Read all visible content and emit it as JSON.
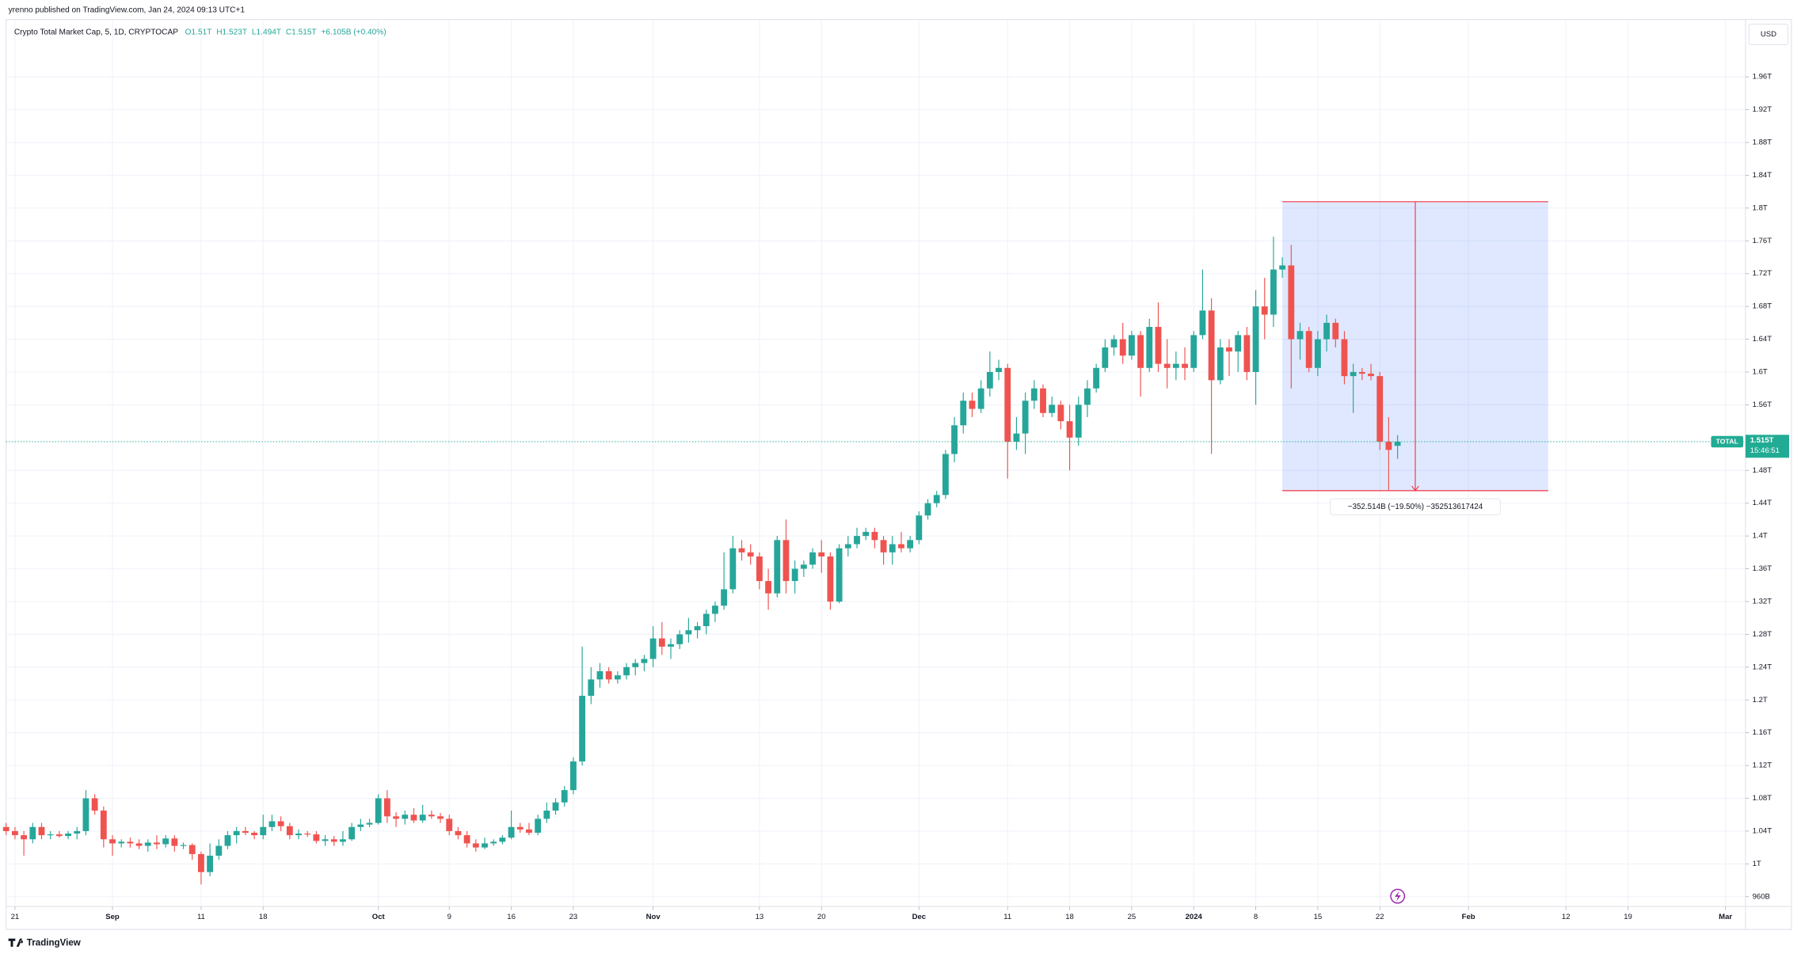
{
  "header": {
    "published": "yrenno published on TradingView.com, Jan 24, 2024 09:13 UTC+1"
  },
  "footer": {
    "brand": "TradingView"
  },
  "chart_data": {
    "type": "candlestick",
    "title": "Crypto Total Market Cap, 5, 1D, CRYPTOCAP",
    "legend": {
      "o": "O1.51T",
      "h": "H1.523T",
      "l": "L1.494T",
      "c": "C1.515T",
      "change": "+6.105B (+0.40%)"
    },
    "currency": "USD",
    "up_color": "#26a69a",
    "down_color": "#ef5350",
    "grid": true,
    "x": [
      "2023-08-20",
      "2023-08-21",
      "2023-08-22",
      "2023-08-23",
      "2023-08-24",
      "2023-08-25",
      "2023-08-26",
      "2023-08-27",
      "2023-08-28",
      "2023-08-29",
      "2023-08-30",
      "2023-08-31",
      "2023-09-01",
      "2023-09-02",
      "2023-09-03",
      "2023-09-04",
      "2023-09-05",
      "2023-09-06",
      "2023-09-07",
      "2023-09-08",
      "2023-09-09",
      "2023-09-10",
      "2023-09-11",
      "2023-09-12",
      "2023-09-13",
      "2023-09-14",
      "2023-09-15",
      "2023-09-16",
      "2023-09-17",
      "2023-09-18",
      "2023-09-19",
      "2023-09-20",
      "2023-09-21",
      "2023-09-22",
      "2023-09-23",
      "2023-09-24",
      "2023-09-25",
      "2023-09-26",
      "2023-09-27",
      "2023-09-28",
      "2023-09-29",
      "2023-09-30",
      "2023-10-01",
      "2023-10-02",
      "2023-10-03",
      "2023-10-04",
      "2023-10-05",
      "2023-10-06",
      "2023-10-07",
      "2023-10-08",
      "2023-10-09",
      "2023-10-10",
      "2023-10-11",
      "2023-10-12",
      "2023-10-13",
      "2023-10-14",
      "2023-10-15",
      "2023-10-16",
      "2023-10-17",
      "2023-10-18",
      "2023-10-19",
      "2023-10-20",
      "2023-10-21",
      "2023-10-22",
      "2023-10-23",
      "2023-10-24",
      "2023-10-25",
      "2023-10-26",
      "2023-10-27",
      "2023-10-28",
      "2023-10-29",
      "2023-10-30",
      "2023-10-31",
      "2023-11-01",
      "2023-11-02",
      "2023-11-03",
      "2023-11-04",
      "2023-11-05",
      "2023-11-06",
      "2023-11-07",
      "2023-11-08",
      "2023-11-09",
      "2023-11-10",
      "2023-11-11",
      "2023-11-12",
      "2023-11-13",
      "2023-11-14",
      "2023-11-15",
      "2023-11-16",
      "2023-11-17",
      "2023-11-18",
      "2023-11-19",
      "2023-11-20",
      "2023-11-21",
      "2023-11-22",
      "2023-11-23",
      "2023-11-24",
      "2023-11-25",
      "2023-11-26",
      "2023-11-27",
      "2023-11-28",
      "2023-11-29",
      "2023-11-30",
      "2023-12-01",
      "2023-12-02",
      "2023-12-03",
      "2023-12-04",
      "2023-12-05",
      "2023-12-06",
      "2023-12-07",
      "2023-12-08",
      "2023-12-09",
      "2023-12-10",
      "2023-12-11",
      "2023-12-12",
      "2023-12-13",
      "2023-12-14",
      "2023-12-15",
      "2023-12-16",
      "2023-12-17",
      "2023-12-18",
      "2023-12-19",
      "2023-12-20",
      "2023-12-21",
      "2023-12-22",
      "2023-12-23",
      "2023-12-24",
      "2023-12-25",
      "2023-12-26",
      "2023-12-27",
      "2023-12-28",
      "2023-12-29",
      "2023-12-30",
      "2023-12-31",
      "2024-01-01",
      "2024-01-02",
      "2024-01-03",
      "2024-01-04",
      "2024-01-05",
      "2024-01-06",
      "2024-01-07",
      "2024-01-08",
      "2024-01-09",
      "2024-01-10",
      "2024-01-11",
      "2024-01-12",
      "2024-01-13",
      "2024-01-14",
      "2024-01-15",
      "2024-01-16",
      "2024-01-17",
      "2024-01-18",
      "2024-01-19",
      "2024-01-20",
      "2024-01-21",
      "2024-01-22",
      "2024-01-23",
      "2024-01-24"
    ],
    "open": [
      1.045,
      1.04,
      1.035,
      1.03,
      1.045,
      1.035,
      1.036,
      1.034,
      1.037,
      1.04,
      1.08,
      1.065,
      1.03,
      1.025,
      1.027,
      1.025,
      1.022,
      1.026,
      1.024,
      1.031,
      1.022,
      1.023,
      1.012,
      0.99,
      1.01,
      1.022,
      1.035,
      1.04,
      1.038,
      1.035,
      1.045,
      1.052,
      1.046,
      1.035,
      1.037,
      1.036,
      1.028,
      1.03,
      1.027,
      1.03,
      1.045,
      1.048,
      1.05,
      1.08,
      1.058,
      1.055,
      1.06,
      1.053,
      1.06,
      1.058,
      1.055,
      1.04,
      1.035,
      1.025,
      1.02,
      1.025,
      1.027,
      1.032,
      1.045,
      1.042,
      1.038,
      1.055,
      1.065,
      1.075,
      1.09,
      1.125,
      1.205,
      1.225,
      1.235,
      1.225,
      1.23,
      1.24,
      1.245,
      1.25,
      1.275,
      1.265,
      1.268,
      1.28,
      1.285,
      1.29,
      1.305,
      1.315,
      1.335,
      1.385,
      1.38,
      1.375,
      1.345,
      1.33,
      1.395,
      1.345,
      1.36,
      1.365,
      1.38,
      1.375,
      1.32,
      1.385,
      1.39,
      1.4,
      1.405,
      1.395,
      1.38,
      1.39,
      1.385,
      1.395,
      1.425,
      1.44,
      1.45,
      1.5,
      1.535,
      1.565,
      1.555,
      1.58,
      1.6,
      1.605,
      1.515,
      1.525,
      1.565,
      1.58,
      1.55,
      1.56,
      1.54,
      1.52,
      1.56,
      1.58,
      1.605,
      1.63,
      1.64,
      1.62,
      1.645,
      1.605,
      1.655,
      1.61,
      1.605,
      1.61,
      1.605,
      1.645,
      1.675,
      1.59,
      1.63,
      1.625,
      1.645,
      1.6,
      1.68,
      1.67,
      1.725,
      1.73,
      1.64,
      1.65,
      1.605,
      1.64,
      1.66,
      1.64,
      1.595,
      1.6,
      1.598,
      1.595,
      1.515,
      1.51
    ],
    "high": [
      1.05,
      1.045,
      1.04,
      1.05,
      1.05,
      1.04,
      1.04,
      1.04,
      1.045,
      1.09,
      1.085,
      1.07,
      1.035,
      1.03,
      1.032,
      1.03,
      1.03,
      1.035,
      1.035,
      1.035,
      1.026,
      1.025,
      1.015,
      1.025,
      1.03,
      1.04,
      1.045,
      1.045,
      1.04,
      1.06,
      1.06,
      1.058,
      1.05,
      1.042,
      1.04,
      1.04,
      1.035,
      1.034,
      1.04,
      1.05,
      1.055,
      1.055,
      1.085,
      1.09,
      1.063,
      1.065,
      1.068,
      1.072,
      1.065,
      1.062,
      1.06,
      1.045,
      1.04,
      1.03,
      1.032,
      1.03,
      1.035,
      1.065,
      1.05,
      1.05,
      1.06,
      1.075,
      1.08,
      1.095,
      1.13,
      1.265,
      1.24,
      1.245,
      1.24,
      1.235,
      1.245,
      1.25,
      1.255,
      1.29,
      1.295,
      1.275,
      1.285,
      1.3,
      1.295,
      1.31,
      1.32,
      1.38,
      1.4,
      1.395,
      1.39,
      1.38,
      1.36,
      1.4,
      1.42,
      1.37,
      1.37,
      1.385,
      1.395,
      1.38,
      1.39,
      1.4,
      1.41,
      1.41,
      1.41,
      1.4,
      1.4,
      1.405,
      1.4,
      1.43,
      1.445,
      1.455,
      1.505,
      1.545,
      1.575,
      1.575,
      1.59,
      1.625,
      1.615,
      1.61,
      1.545,
      1.575,
      1.59,
      1.585,
      1.57,
      1.565,
      1.56,
      1.57,
      1.59,
      1.61,
      1.64,
      1.645,
      1.66,
      1.65,
      1.65,
      1.665,
      1.685,
      1.64,
      1.625,
      1.63,
      1.65,
      1.725,
      1.69,
      1.64,
      1.64,
      1.65,
      1.655,
      1.7,
      1.715,
      1.765,
      1.74,
      1.755,
      1.66,
      1.655,
      1.65,
      1.67,
      1.665,
      1.65,
      1.61,
      1.605,
      1.61,
      1.6,
      1.545,
      1.523
    ],
    "low": [
      1.035,
      1.03,
      1.01,
      1.025,
      1.03,
      1.03,
      1.032,
      1.03,
      1.03,
      1.035,
      1.06,
      1.02,
      1.01,
      1.02,
      1.02,
      1.018,
      1.015,
      1.018,
      1.02,
      1.015,
      1.018,
      1.005,
      0.975,
      0.985,
      1.005,
      1.018,
      1.025,
      1.035,
      1.03,
      1.03,
      1.04,
      1.04,
      1.03,
      1.03,
      1.033,
      1.025,
      1.022,
      1.022,
      1.022,
      1.028,
      1.04,
      1.045,
      1.048,
      1.05,
      1.045,
      1.048,
      1.05,
      1.05,
      1.055,
      1.05,
      1.035,
      1.03,
      1.02,
      1.015,
      1.018,
      1.022,
      1.024,
      1.03,
      1.038,
      1.035,
      1.035,
      1.05,
      1.06,
      1.07,
      1.085,
      1.12,
      1.195,
      1.215,
      1.22,
      1.22,
      1.225,
      1.23,
      1.235,
      1.24,
      1.255,
      1.25,
      1.262,
      1.27,
      1.275,
      1.28,
      1.295,
      1.31,
      1.33,
      1.37,
      1.365,
      1.335,
      1.31,
      1.325,
      1.33,
      1.33,
      1.35,
      1.36,
      1.355,
      1.31,
      1.318,
      1.375,
      1.385,
      1.395,
      1.385,
      1.365,
      1.365,
      1.38,
      1.38,
      1.39,
      1.42,
      1.435,
      1.445,
      1.49,
      1.525,
      1.545,
      1.55,
      1.57,
      1.59,
      1.47,
      1.505,
      1.5,
      1.555,
      1.545,
      1.545,
      1.53,
      1.48,
      1.51,
      1.545,
      1.575,
      1.6,
      1.62,
      1.61,
      1.615,
      1.57,
      1.6,
      1.6,
      1.58,
      1.59,
      1.59,
      1.6,
      1.64,
      1.5,
      1.585,
      1.595,
      1.6,
      1.59,
      1.56,
      1.64,
      1.655,
      1.715,
      1.58,
      1.615,
      1.6,
      1.595,
      1.625,
      1.63,
      1.585,
      1.55,
      1.59,
      1.59,
      1.505,
      1.455,
      1.494
    ],
    "close": [
      1.04,
      1.035,
      1.03,
      1.045,
      1.035,
      1.036,
      1.034,
      1.037,
      1.04,
      1.08,
      1.065,
      1.03,
      1.025,
      1.027,
      1.025,
      1.022,
      1.026,
      1.024,
      1.031,
      1.022,
      1.023,
      1.012,
      0.99,
      1.01,
      1.022,
      1.035,
      1.04,
      1.038,
      1.035,
      1.045,
      1.052,
      1.046,
      1.035,
      1.037,
      1.036,
      1.028,
      1.03,
      1.027,
      1.03,
      1.045,
      1.048,
      1.05,
      1.08,
      1.058,
      1.055,
      1.06,
      1.053,
      1.06,
      1.058,
      1.055,
      1.04,
      1.035,
      1.025,
      1.02,
      1.025,
      1.027,
      1.032,
      1.045,
      1.042,
      1.038,
      1.055,
      1.065,
      1.075,
      1.09,
      1.125,
      1.205,
      1.225,
      1.235,
      1.225,
      1.23,
      1.24,
      1.245,
      1.25,
      1.275,
      1.265,
      1.268,
      1.28,
      1.285,
      1.29,
      1.305,
      1.315,
      1.335,
      1.385,
      1.38,
      1.375,
      1.345,
      1.33,
      1.395,
      1.345,
      1.36,
      1.365,
      1.38,
      1.375,
      1.32,
      1.385,
      1.39,
      1.4,
      1.405,
      1.395,
      1.38,
      1.39,
      1.385,
      1.395,
      1.425,
      1.44,
      1.45,
      1.5,
      1.535,
      1.565,
      1.555,
      1.58,
      1.6,
      1.605,
      1.515,
      1.525,
      1.565,
      1.58,
      1.55,
      1.56,
      1.54,
      1.52,
      1.56,
      1.58,
      1.605,
      1.63,
      1.64,
      1.62,
      1.645,
      1.605,
      1.655,
      1.61,
      1.605,
      1.61,
      1.605,
      1.645,
      1.675,
      1.59,
      1.63,
      1.625,
      1.645,
      1.6,
      1.68,
      1.67,
      1.725,
      1.73,
      1.64,
      1.65,
      1.605,
      1.64,
      1.66,
      1.64,
      1.595,
      1.6,
      1.598,
      1.595,
      1.515,
      1.505,
      1.515
    ],
    "xlim": [
      "2023-08-20",
      "2024-03-03"
    ],
    "xticks": [
      {
        "value": "2023-08-21",
        "label": "21"
      },
      {
        "value": "2023-09-01",
        "label": "Sep"
      },
      {
        "value": "2023-09-11",
        "label": "11"
      },
      {
        "value": "2023-09-18",
        "label": "18"
      },
      {
        "value": "2023-10-01",
        "label": "Oct"
      },
      {
        "value": "2023-10-09",
        "label": "9"
      },
      {
        "value": "2023-10-16",
        "label": "16"
      },
      {
        "value": "2023-10-23",
        "label": "23"
      },
      {
        "value": "2023-11-01",
        "label": "Nov"
      },
      {
        "value": "2023-11-13",
        "label": "13"
      },
      {
        "value": "2023-11-20",
        "label": "20"
      },
      {
        "value": "2023-12-01",
        "label": "Dec"
      },
      {
        "value": "2023-12-11",
        "label": "11"
      },
      {
        "value": "2023-12-18",
        "label": "18"
      },
      {
        "value": "2023-12-25",
        "label": "25"
      },
      {
        "value": "2024-01-01",
        "label": "2024"
      },
      {
        "value": "2024-01-08",
        "label": "8"
      },
      {
        "value": "2024-01-15",
        "label": "15"
      },
      {
        "value": "2024-01-22",
        "label": "22"
      },
      {
        "value": "2024-02-01",
        "label": "Feb"
      },
      {
        "value": "2024-02-12",
        "label": "12"
      },
      {
        "value": "2024-02-19",
        "label": "19"
      },
      {
        "value": "2024-03-01",
        "label": "Mar"
      }
    ],
    "ylim": [
      0.948,
      2.03
    ],
    "yticks": [
      {
        "value": 0.96,
        "label": "960B"
      },
      {
        "value": 1,
        "label": "1T"
      },
      {
        "value": 1.04,
        "label": "1.04T"
      },
      {
        "value": 1.08,
        "label": "1.08T"
      },
      {
        "value": 1.12,
        "label": "1.12T"
      },
      {
        "value": 1.16,
        "label": "1.16T"
      },
      {
        "value": 1.2,
        "label": "1.2T"
      },
      {
        "value": 1.24,
        "label": "1.24T"
      },
      {
        "value": 1.28,
        "label": "1.28T"
      },
      {
        "value": 1.32,
        "label": "1.32T"
      },
      {
        "value": 1.36,
        "label": "1.36T"
      },
      {
        "value": 1.4,
        "label": "1.4T"
      },
      {
        "value": 1.44,
        "label": "1.44T"
      },
      {
        "value": 1.48,
        "label": "1.48T"
      },
      {
        "value": 1.56,
        "label": "1.56T"
      },
      {
        "value": 1.6,
        "label": "1.6T"
      },
      {
        "value": 1.64,
        "label": "1.64T"
      },
      {
        "value": 1.68,
        "label": "1.68T"
      },
      {
        "value": 1.72,
        "label": "1.72T"
      },
      {
        "value": 1.76,
        "label": "1.76T"
      },
      {
        "value": 1.8,
        "label": "1.8T"
      },
      {
        "value": 1.84,
        "label": "1.84T"
      },
      {
        "value": 1.88,
        "label": "1.88T"
      },
      {
        "value": 1.92,
        "label": "1.92T"
      },
      {
        "value": 1.96,
        "label": "1.96T"
      }
    ],
    "price_tag": {
      "symbol": "TOTAL",
      "price": "1.515T",
      "countdown": "15:46:51"
    },
    "measure": {
      "start": "2024-01-11",
      "end": "2024-02-10",
      "arrow": "2024-01-26",
      "top": 1.80776,
      "bottom": 1.45525,
      "label": "−352.514B (−19.50%) −352513617424"
    }
  }
}
